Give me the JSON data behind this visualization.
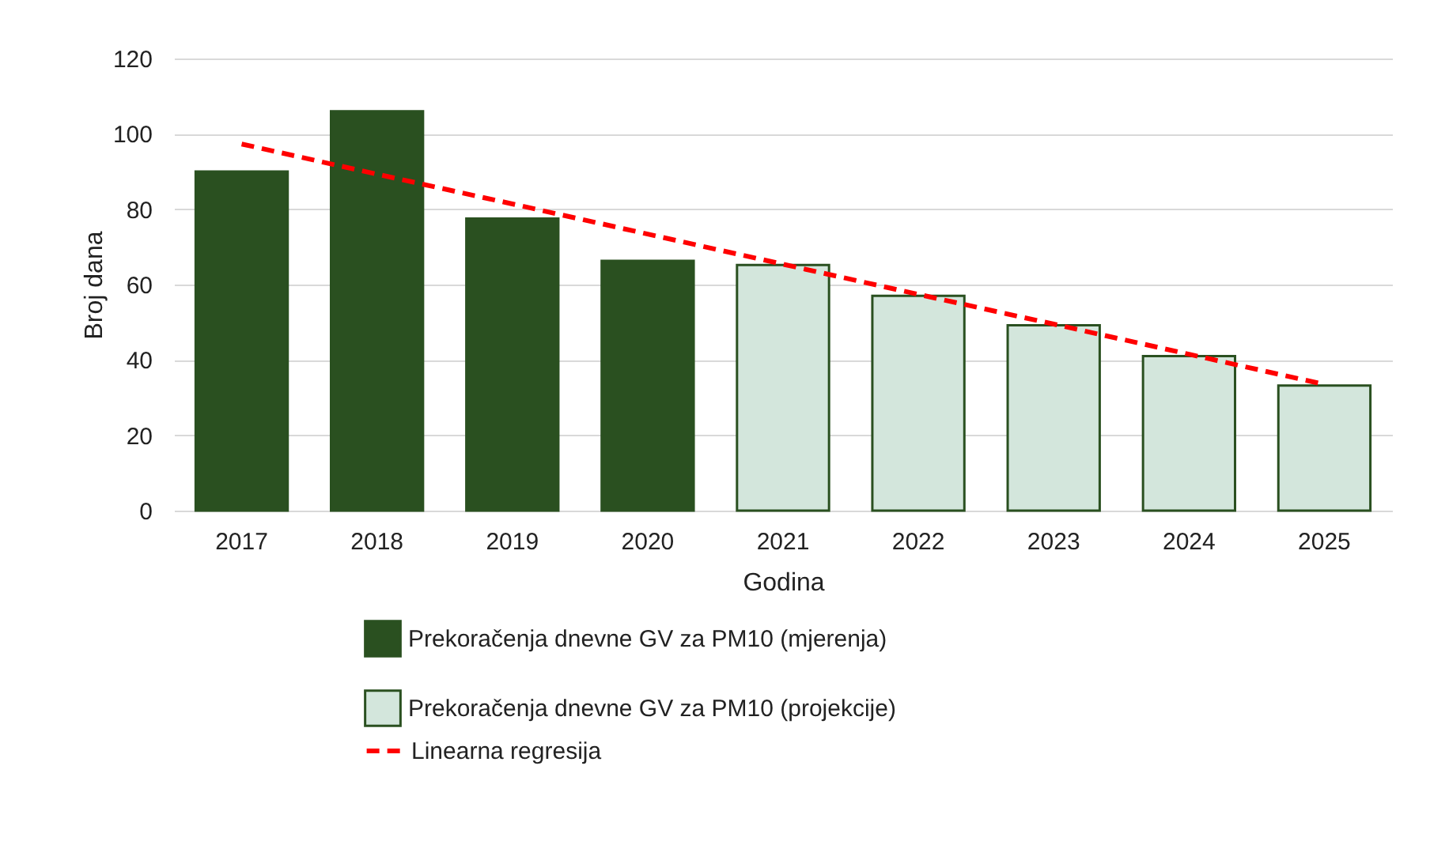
{
  "chart_data": {
    "type": "bar",
    "xlabel": "Godina",
    "ylabel": "Broj dana",
    "categories": [
      "2017",
      "2018",
      "2019",
      "2020",
      "2021",
      "2022",
      "2023",
      "2024",
      "2025"
    ],
    "series": [
      {
        "name": "Prekoračenja dnevne GV za PM10 (mjerenja)",
        "color": "#2a5020",
        "values": [
          90,
          106,
          77.5,
          66.3,
          null,
          null,
          null,
          null,
          null
        ]
      },
      {
        "name": "Prekoračenja dnevne GV za PM10 (projekcije)",
        "color": "#d3e6dc",
        "values": [
          null,
          null,
          null,
          null,
          65.2,
          57,
          49.2,
          41,
          33.2
        ]
      },
      {
        "name": "Linearna regresija",
        "type": "line",
        "color": "#ff0000",
        "line_style": "dashed",
        "values": [
          97.3,
          89.3,
          81.4,
          73.4,
          65.4,
          57.4,
          49.5,
          41.5,
          33.5
        ]
      }
    ],
    "ylim": [
      0,
      120
    ],
    "yticks": [
      0,
      20,
      40,
      60,
      80,
      100,
      120
    ],
    "grid": "y",
    "legend": "bottom"
  }
}
